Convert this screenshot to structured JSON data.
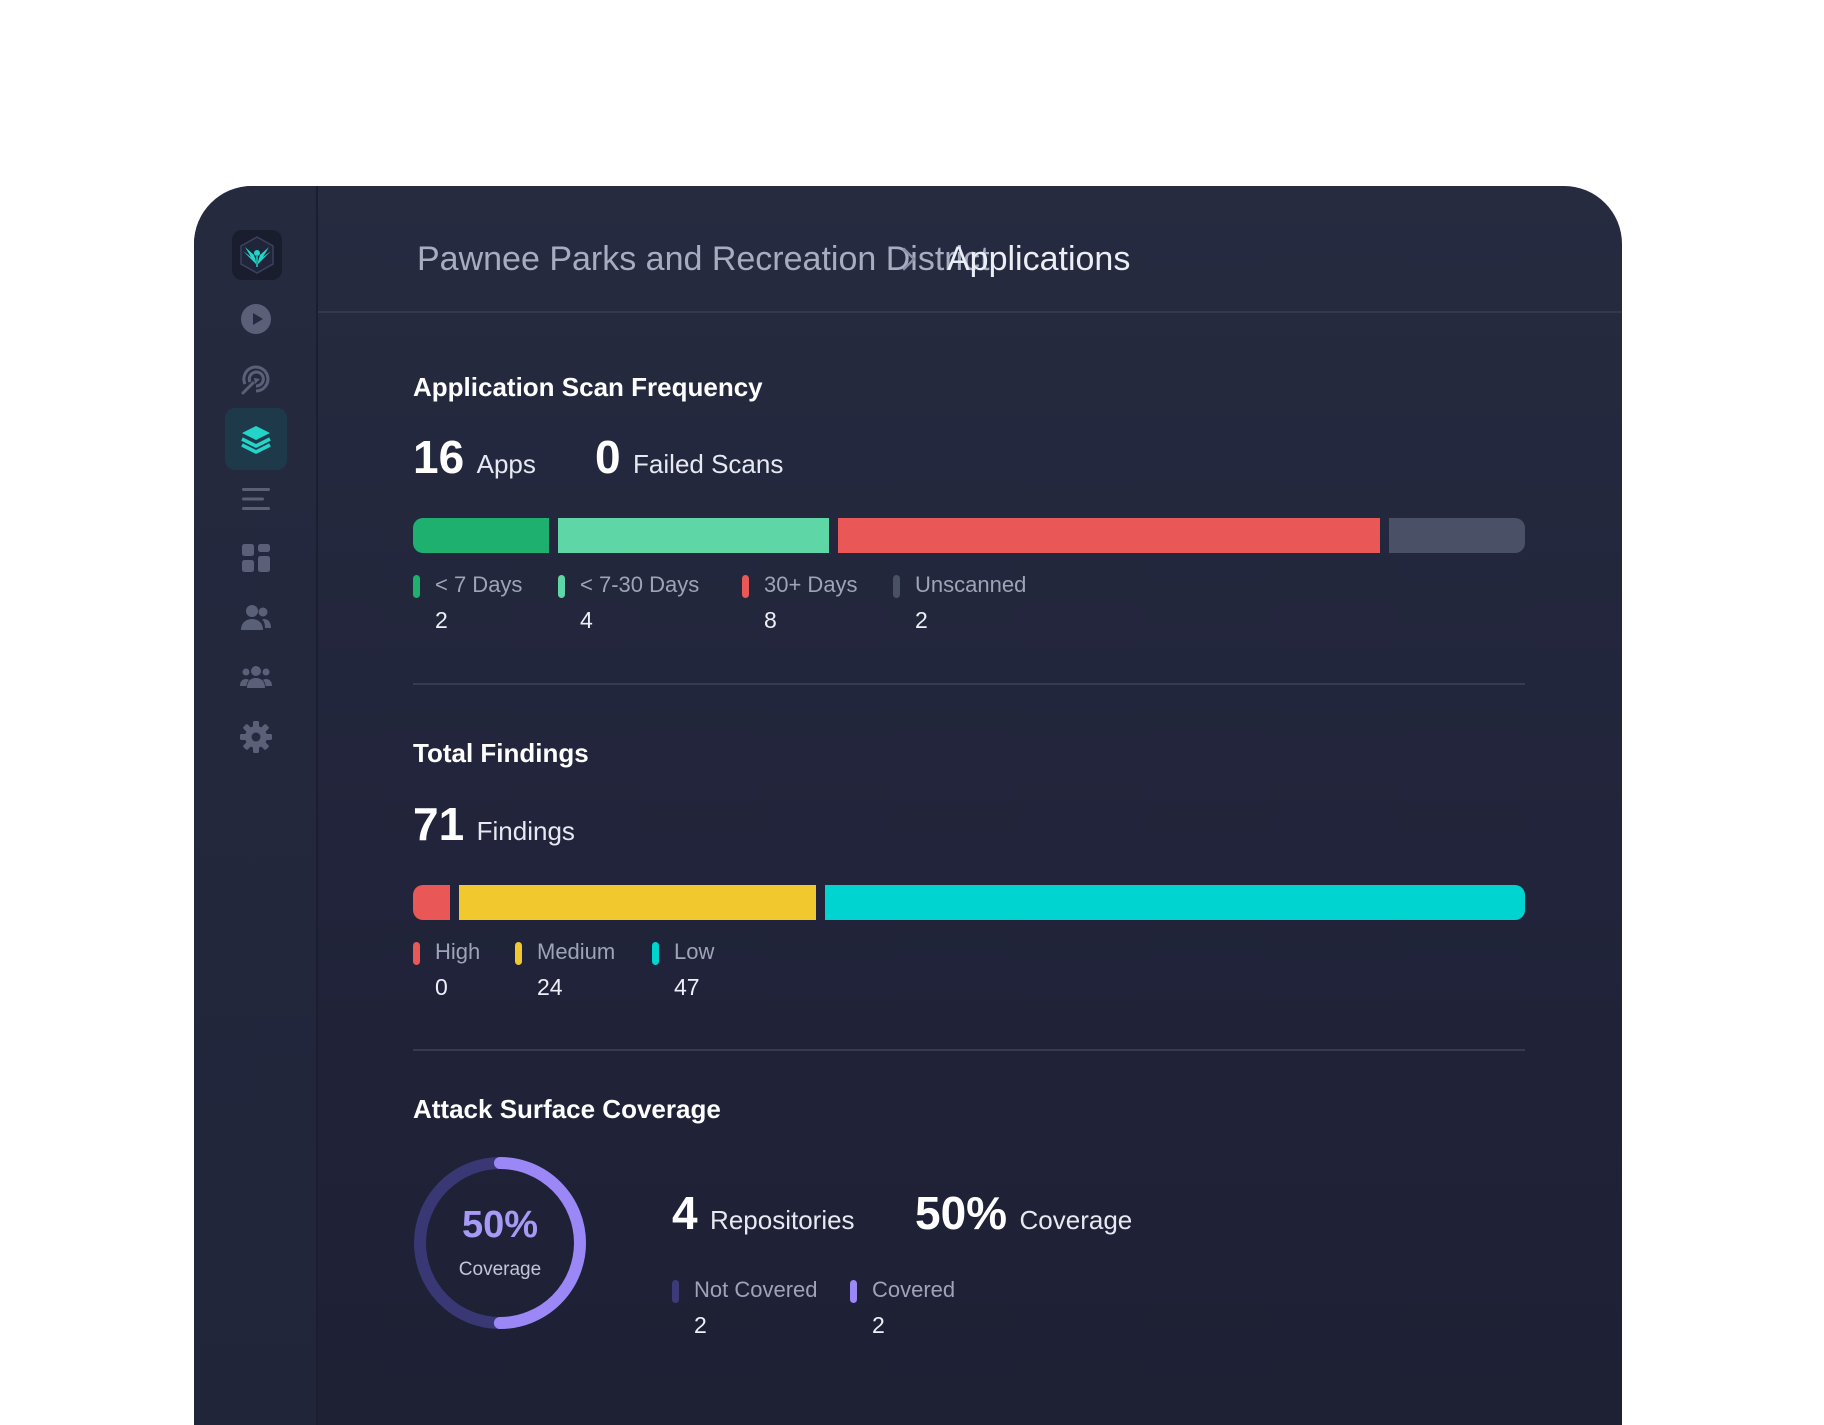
{
  "breadcrumb": {
    "root": "Pawnee Parks and Recreation District",
    "current": "Applications"
  },
  "sidebar": {
    "items": [
      {
        "icon": "play-circle-icon",
        "active": false
      },
      {
        "icon": "radar-icon",
        "active": false
      },
      {
        "icon": "layers-icon",
        "active": true
      },
      {
        "icon": "list-icon",
        "active": false
      },
      {
        "icon": "dashboard-grid-icon",
        "active": false
      },
      {
        "icon": "users-icon",
        "active": false
      },
      {
        "icon": "team-icon",
        "active": false
      },
      {
        "icon": "gear-icon",
        "active": false
      }
    ]
  },
  "scan_frequency": {
    "title": "Application Scan Frequency",
    "apps_count": "16",
    "apps_label": "Apps",
    "failed_count": "0",
    "failed_label": "Failed Scans",
    "legend": [
      {
        "label": "< 7 Days",
        "value": "2",
        "color": "#1db06f"
      },
      {
        "label": "< 7-30 Days",
        "value": "4",
        "color": "#5fd6a5"
      },
      {
        "label": "30+ Days",
        "value": "8",
        "color": "#e95757"
      },
      {
        "label": "Unscanned",
        "value": "2",
        "color": "#4a5066"
      }
    ]
  },
  "findings": {
    "title": "Total Findings",
    "count": "71",
    "label": "Findings",
    "legend": [
      {
        "label": "High",
        "value": "0",
        "color": "#e95757"
      },
      {
        "label": "Medium",
        "value": "24",
        "color": "#f1c92e"
      },
      {
        "label": "Low",
        "value": "47",
        "color": "#00d4d0"
      }
    ]
  },
  "coverage": {
    "title": "Attack Surface Coverage",
    "ring_percent": "50%",
    "ring_label": "Coverage",
    "ring_fraction": 0.5,
    "repos_count": "4",
    "repos_label": "Repositories",
    "coverage_value": "50%",
    "coverage_label": "Coverage",
    "legend": [
      {
        "label": "Not Covered",
        "value": "2",
        "color": "#3d3a7a"
      },
      {
        "label": "Covered",
        "value": "2",
        "color": "#9b87f5"
      }
    ]
  }
}
